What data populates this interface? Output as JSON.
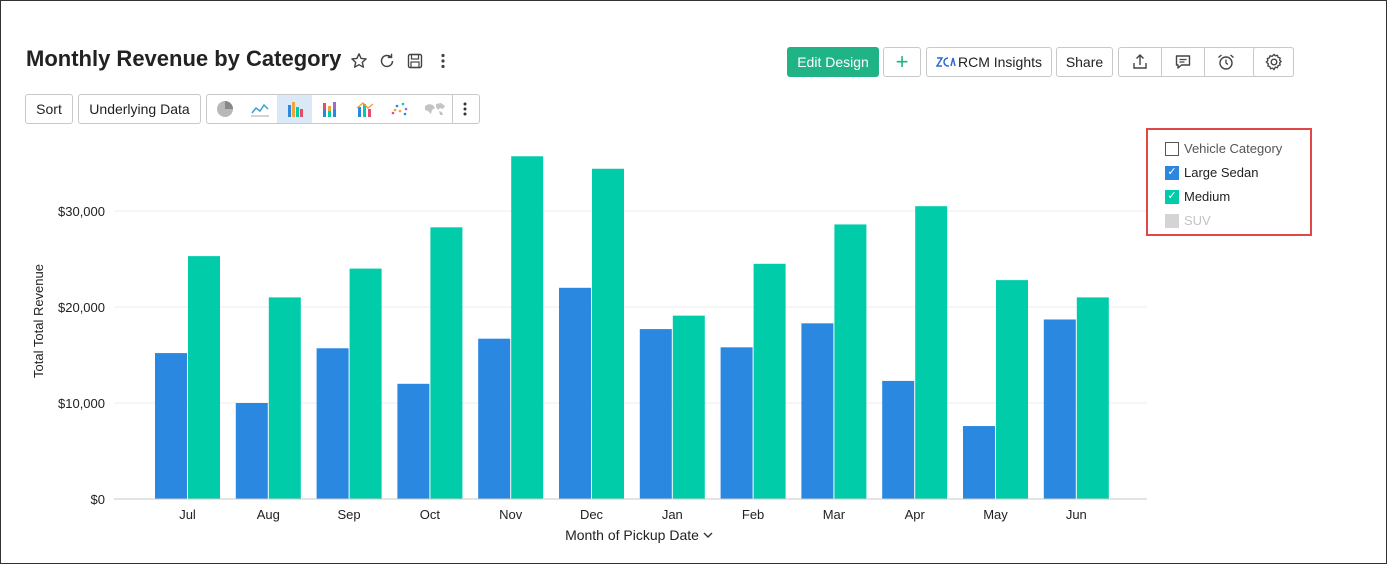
{
  "header": {
    "title": "Monthly Revenue by Category",
    "edit_design_label": "Edit Design",
    "add_label": "+",
    "insights_label": "RCM Insights",
    "share_label": "Share"
  },
  "toolbar": {
    "sort_label": "Sort",
    "underlying_data_label": "Underlying Data",
    "chart_types": [
      "pie",
      "line",
      "bar",
      "stacked-bar",
      "bar-line",
      "scatter",
      "map"
    ],
    "active_chart_type": "bar"
  },
  "legend": {
    "title": "Vehicle Category",
    "items": [
      {
        "label": "Large Sedan",
        "checked": true,
        "color": "#2a88e0"
      },
      {
        "label": "Medium",
        "checked": true,
        "color": "#00cca9"
      },
      {
        "label": "SUV",
        "checked": false,
        "color": "#d4d4d4"
      }
    ]
  },
  "chart_data": {
    "type": "bar",
    "xlabel": "Month of Pickup Date",
    "ylabel": "Total Total Revenue",
    "ylim": [
      0,
      37000
    ],
    "yticks": [
      0,
      10000,
      20000,
      30000
    ],
    "ytick_labels": [
      "$0",
      "$10,000",
      "$20,000",
      "$30,000"
    ],
    "grid": true,
    "legend_position": "top-right",
    "categories": [
      "Jul",
      "Aug",
      "Sep",
      "Oct",
      "Nov",
      "Dec",
      "Jan",
      "Feb",
      "Mar",
      "Apr",
      "May",
      "Jun"
    ],
    "series": [
      {
        "name": "Large Sedan",
        "color": "#2a88e0",
        "values": [
          15200,
          10000,
          15700,
          12000,
          16700,
          22000,
          17700,
          15800,
          18300,
          12300,
          7600,
          18700
        ]
      },
      {
        "name": "Medium",
        "color": "#00cca9",
        "values": [
          25300,
          21000,
          24000,
          28300,
          35700,
          34400,
          19100,
          24500,
          28600,
          30500,
          22800,
          21000
        ]
      }
    ]
  }
}
